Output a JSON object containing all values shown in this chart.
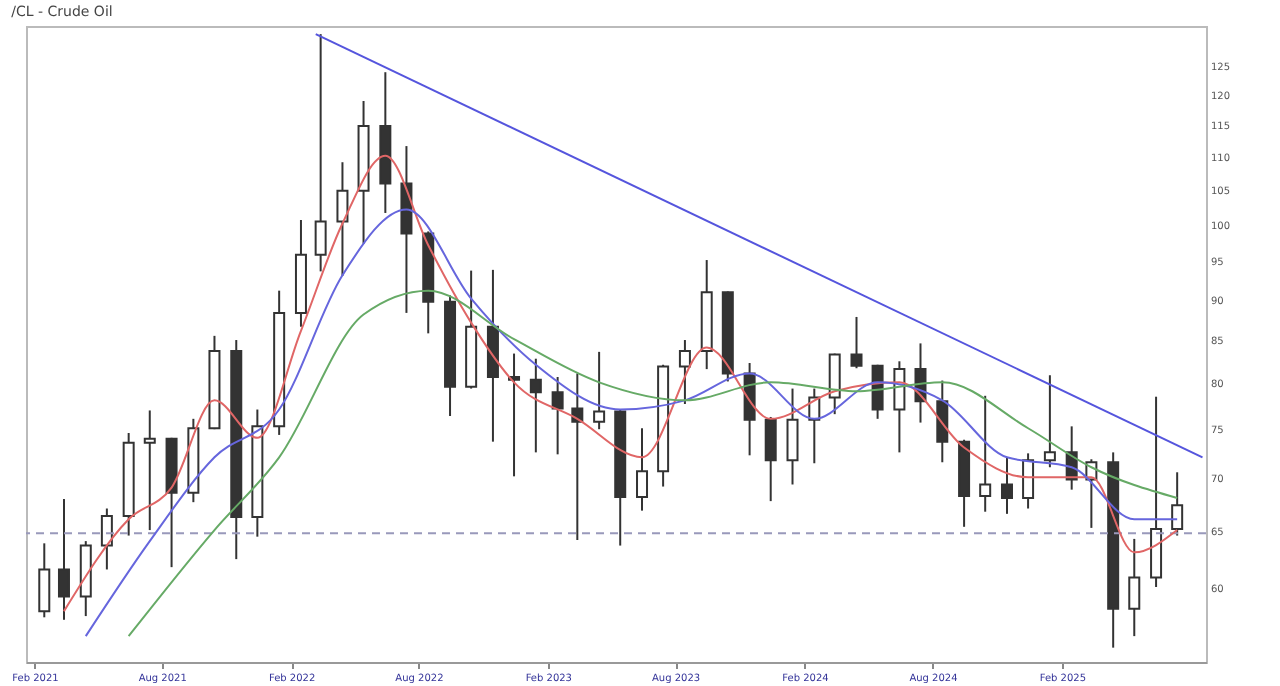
{
  "chart_data": {
    "type": "candlestick",
    "title": "/CL - Crude Oil",
    "x": [
      "2021-02-15",
      "2021-03-15",
      "2021-04-15",
      "2021-05-15",
      "2021-06-15",
      "2021-07-15",
      "2021-08-15",
      "2021-09-15",
      "2021-10-15",
      "2021-11-15",
      "2021-12-15",
      "2022-01-15",
      "2022-02-15",
      "2022-03-15",
      "2022-04-15",
      "2022-05-15",
      "2022-06-15",
      "2022-07-15",
      "2022-08-15",
      "2022-09-15",
      "2022-10-15",
      "2022-11-15",
      "2022-12-15",
      "2023-01-15",
      "2023-02-15",
      "2023-03-15",
      "2023-04-15",
      "2023-05-15",
      "2023-06-15",
      "2023-07-15",
      "2023-08-15",
      "2023-09-15",
      "2023-10-15",
      "2023-11-15",
      "2023-12-15",
      "2024-01-15",
      "2024-02-15",
      "2024-03-15",
      "2024-04-15",
      "2024-05-15",
      "2024-06-15",
      "2024-07-15",
      "2024-08-15",
      "2024-09-15",
      "2024-10-15",
      "2024-11-15",
      "2024-12-15",
      "2025-01-15",
      "2025-02-15",
      "2025-03-15",
      "2025-04-15",
      "2025-05-15",
      "2025-06-15",
      "2025-07-15"
    ],
    "ohlc": [
      [
        58,
        63.8,
        57.5,
        61.5
      ],
      [
        61.5,
        67.9,
        57.3,
        59.2
      ],
      [
        59.2,
        64,
        57.6,
        63.6
      ],
      [
        63.6,
        67,
        61.5,
        66.3
      ],
      [
        66.3,
        74.5,
        64.5,
        73.5
      ],
      [
        73.5,
        76.9,
        65,
        73.9
      ],
      [
        73.9,
        74,
        61.7,
        68.5
      ],
      [
        68.5,
        76,
        67.6,
        75
      ],
      [
        75,
        85.4,
        74.9,
        83.6
      ],
      [
        83.6,
        84.9,
        62.4,
        66.2
      ],
      [
        66.2,
        77,
        64.4,
        75.2
      ],
      [
        75.2,
        91,
        74.3,
        88.2
      ],
      [
        88.2,
        100.5,
        86.5,
        95.7
      ],
      [
        95.7,
        130.5,
        93.5,
        100.3
      ],
      [
        100.3,
        109,
        92.9,
        104.7
      ],
      [
        104.7,
        118.8,
        97.2,
        114.7
      ],
      [
        114.7,
        123.7,
        101.5,
        105.8
      ],
      [
        105.8,
        111.5,
        88.2,
        98.6
      ],
      [
        98.6,
        98.9,
        85.7,
        89.6
      ],
      [
        89.6,
        90.4,
        76.3,
        79.5
      ],
      [
        79.5,
        93.6,
        79.3,
        86.5
      ],
      [
        86.5,
        93.7,
        73.6,
        80.6
      ],
      [
        80.6,
        83.3,
        70.1,
        80.3
      ],
      [
        80.3,
        82.7,
        72.5,
        78.9
      ],
      [
        78.9,
        80.6,
        72.3,
        77.1
      ],
      [
        77.1,
        81,
        64.1,
        75.7
      ],
      [
        75.7,
        83.5,
        74.9,
        76.8
      ],
      [
        76.8,
        77,
        63.6,
        68.1
      ],
      [
        68.1,
        75,
        66.8,
        70.6
      ],
      [
        70.6,
        82,
        69.1,
        81.8
      ],
      [
        81.8,
        84.9,
        77.6,
        83.6
      ],
      [
        83.6,
        95,
        81.5,
        90.8
      ],
      [
        90.8,
        90.9,
        80.1,
        81
      ],
      [
        81,
        82.2,
        72.2,
        75.9
      ],
      [
        75.9,
        76.2,
        67.7,
        71.7
      ],
      [
        71.7,
        79.3,
        69.3,
        75.9
      ],
      [
        75.9,
        79.3,
        71.4,
        78.3
      ],
      [
        78.3,
        83.3,
        76.5,
        83.2
      ],
      [
        83.2,
        87.7,
        81.6,
        81.9
      ],
      [
        81.9,
        82,
        76,
        77
      ],
      [
        77,
        82.4,
        72.5,
        81.5
      ],
      [
        81.5,
        84.5,
        75.6,
        77.9
      ],
      [
        77.9,
        80.2,
        71.5,
        73.6
      ],
      [
        73.6,
        73.8,
        65.3,
        68.2
      ],
      [
        68.2,
        78.5,
        66.7,
        69.3
      ],
      [
        69.3,
        72,
        66.5,
        68
      ],
      [
        68,
        72.4,
        67,
        71.7
      ],
      [
        71.7,
        80.8,
        71,
        72.5
      ],
      [
        72.5,
        75.2,
        68.8,
        69.8
      ],
      [
        69.8,
        71.8,
        65.2,
        71.5
      ],
      [
        71.5,
        72.5,
        55.1,
        58.2
      ],
      [
        58.2,
        64.2,
        56,
        60.8
      ],
      [
        60.8,
        78.4,
        60,
        65.1
      ],
      [
        65.1,
        70.5,
        64.5,
        67.3
      ]
    ],
    "series": [
      {
        "type": "line",
        "color": "#e06666",
        "x": [
          "2021-03-15",
          "2021-06-15",
          "2021-08-15",
          "2021-10-15",
          "2021-12-15",
          "2022-02-15",
          "2022-04-15",
          "2022-06-15",
          "2022-08-15",
          "2022-10-15",
          "2022-12-15",
          "2023-03-15",
          "2023-06-15",
          "2023-09-15",
          "2023-12-15",
          "2024-03-15",
          "2024-06-15",
          "2024-09-15",
          "2024-12-15",
          "2025-03-15",
          "2025-05-15",
          "2025-07-15"
        ],
        "values": [
          58,
          66,
          69,
          78,
          74,
          86,
          100,
          110,
          97,
          87,
          80,
          76,
          72,
          84,
          76,
          79,
          80,
          73,
          70,
          70,
          63,
          65
        ]
      },
      {
        "type": "line",
        "color": "#6666dd",
        "x": [
          "2021-04-15",
          "2021-07-15",
          "2021-10-15",
          "2022-01-15",
          "2022-04-15",
          "2022-07-15",
          "2022-10-15",
          "2023-01-15",
          "2023-05-15",
          "2023-08-15",
          "2023-11-15",
          "2024-02-15",
          "2024-05-15",
          "2024-08-15",
          "2024-11-15",
          "2025-02-15",
          "2025-05-15",
          "2025-07-15"
        ],
        "values": [
          56,
          64,
          72,
          77,
          93,
          102,
          90,
          82,
          77,
          78,
          81,
          76,
          80,
          78,
          72,
          71,
          66,
          66
        ]
      },
      {
        "type": "line",
        "color": "#66aa66",
        "x": [
          "2021-06-15",
          "2021-10-15",
          "2022-01-15",
          "2022-05-15",
          "2022-08-15",
          "2022-12-15",
          "2023-04-15",
          "2023-08-15",
          "2023-12-15",
          "2024-04-15",
          "2024-08-15",
          "2024-12-15",
          "2025-03-15",
          "2025-07-15"
        ],
        "values": [
          56,
          65,
          72,
          88,
          91,
          85,
          80,
          78,
          80,
          79,
          80,
          75,
          71,
          68
        ]
      },
      {
        "type": "line",
        "color": "#5555dd",
        "x": [
          "2022-03-08",
          "2025-08-20"
        ],
        "values": [
          130.5,
          72
        ]
      }
    ],
    "ref_lines": [
      {
        "axis": "y",
        "value": 64.7,
        "color": "#9999bb",
        "line_style": "dashed"
      }
    ],
    "xlim": [
      "2021-01-20",
      "2025-08-25"
    ],
    "xticks": [
      {
        "value": "2021-02-01",
        "label": "Feb 2021"
      },
      {
        "value": "2021-08-01",
        "label": "Aug 2021"
      },
      {
        "value": "2022-02-01",
        "label": "Feb 2022"
      },
      {
        "value": "2022-08-01",
        "label": "Aug 2022"
      },
      {
        "value": "2023-02-01",
        "label": "Feb 2023"
      },
      {
        "value": "2023-08-01",
        "label": "Aug 2023"
      },
      {
        "value": "2024-02-01",
        "label": "Feb 2024"
      },
      {
        "value": "2024-08-01",
        "label": "Aug 2024"
      },
      {
        "value": "2025-02-01",
        "label": "Feb 2025"
      }
    ],
    "ylim": [
      54,
      132
    ],
    "yticks": [
      60,
      65,
      70,
      75,
      80,
      85,
      90,
      95,
      100,
      105,
      110,
      115,
      120,
      125
    ],
    "log": "y"
  }
}
